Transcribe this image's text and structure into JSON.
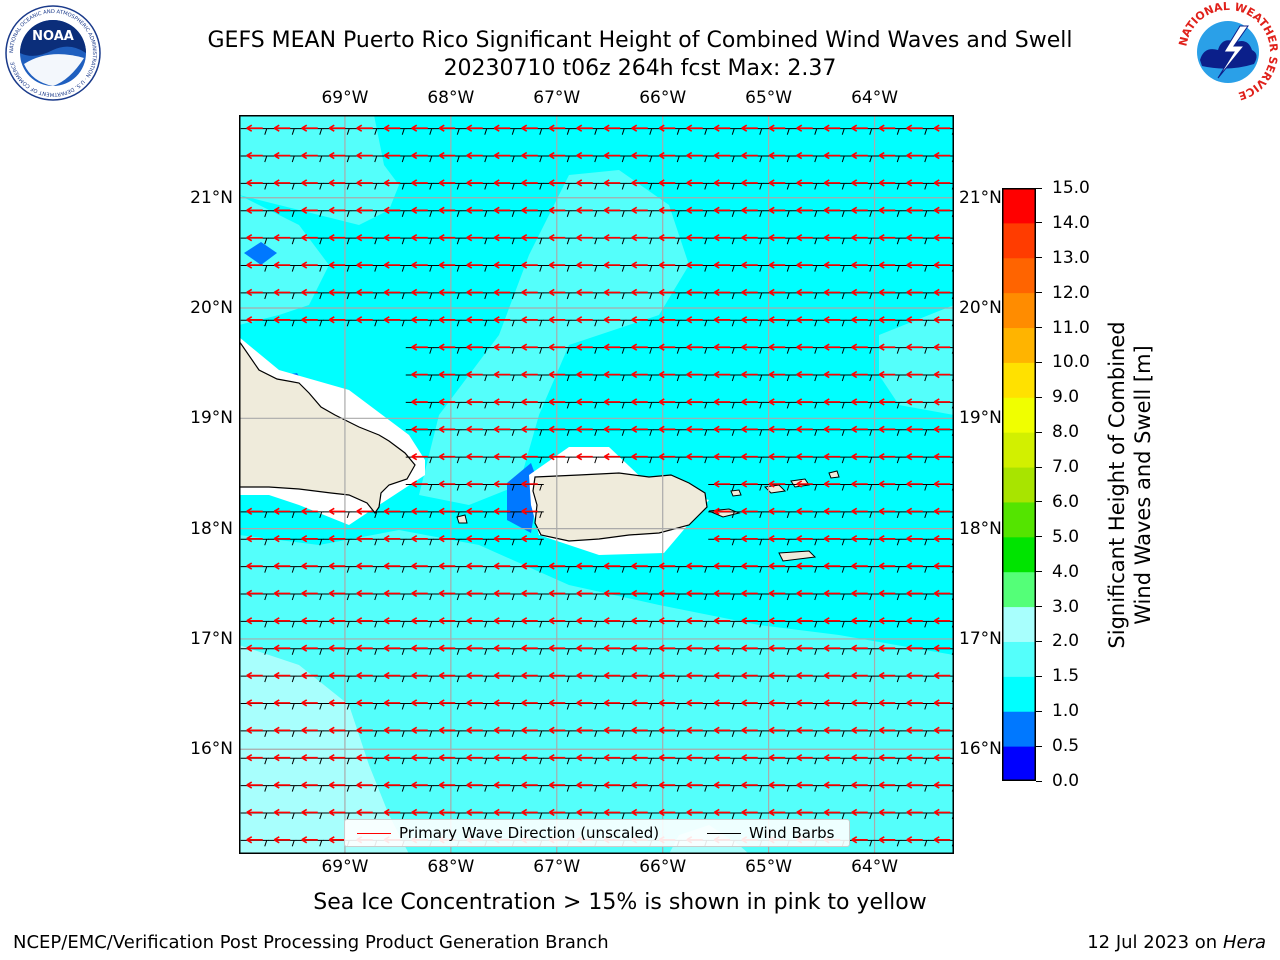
{
  "title": {
    "line1": "GEFS MEAN Puerto Rico Significant Height of Combined Wind Waves and Swell",
    "line2": "20230710 t06z 264h fcst   Max: 2.37"
  },
  "logos": {
    "noaa_text": "NOAA",
    "noaa_ring": "NATIONAL OCEANIC AND ATMOSPHERIC ADMINISTRATION · U.S. DEPARTMENT OF COMMERCE",
    "nws_ring": "NATIONAL WEATHER SERVICE"
  },
  "map": {
    "lon_labels": [
      "69°W",
      "68°W",
      "67°W",
      "66°W",
      "65°W",
      "64°W"
    ],
    "lat_labels": [
      "21°N",
      "20°N",
      "19°N",
      "18°N",
      "17°N",
      "16°N"
    ],
    "lon_range": [
      -70.0,
      -63.25
    ],
    "lat_range": [
      15.05,
      21.75
    ],
    "gridlines": true,
    "colors": {
      "sea_main": "#00ffff",
      "sea_light": "#54fffb",
      "sea_lighter": "#a8fffd",
      "sea_low": "#0078ff",
      "land": "#efebdb",
      "coast": "#000000",
      "wave_arrows": "#ff0000",
      "wind_barbs": "#000000"
    }
  },
  "legend": {
    "wave": "Primary Wave Direction (unscaled)",
    "wind": "Wind Barbs",
    "wave_color": "#ff0000",
    "wind_color": "#000000",
    "placement": "lower-center"
  },
  "colorbar": {
    "label_line1": "Significant Height of Combined",
    "label_line2": "Wind Waves and Swell [m]",
    "ticks": [
      "0.0",
      "0.5",
      "1.0",
      "1.5",
      "2.0",
      "3.0",
      "4.0",
      "5.0",
      "6.0",
      "7.0",
      "8.0",
      "9.0",
      "10.0",
      "11.0",
      "12.0",
      "13.0",
      "14.0",
      "15.0"
    ],
    "colors": [
      "#0000ff",
      "#0078ff",
      "#00ffff",
      "#54fffb",
      "#a8fffd",
      "#54ff78",
      "#00e400",
      "#54e400",
      "#a8e400",
      "#d2f000",
      "#f0ff00",
      "#ffe100",
      "#ffb400",
      "#ff8c00",
      "#ff6400",
      "#ff3c00",
      "#ff0000"
    ]
  },
  "note": "Sea Ice Concentration > 15% is shown in pink to yellow",
  "footer": {
    "left": "NCEP/EMC/Verification Post Processing Product Generation Branch",
    "date": "12 Jul 2023 on ",
    "host": "Hera"
  }
}
